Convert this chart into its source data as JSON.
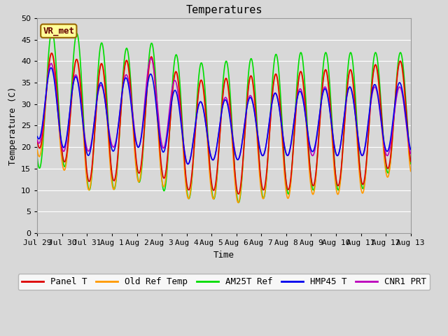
{
  "title": "Temperatures",
  "xlabel": "Time",
  "ylabel": "Temperature (C)",
  "ylim": [
    0,
    50
  ],
  "yticks": [
    0,
    5,
    10,
    15,
    20,
    25,
    30,
    35,
    40,
    45,
    50
  ],
  "xtick_labels": [
    "Jul 29",
    "Jul 30",
    "Jul 31",
    "Aug 1",
    "Aug 2",
    "Aug 3",
    "Aug 4",
    "Aug 5",
    "Aug 6",
    "Aug 7",
    "Aug 8",
    "Aug 9",
    "Aug 10",
    "Aug 11",
    "Aug 12",
    "Aug 13"
  ],
  "series": {
    "Panel T": {
      "color": "#dd0000",
      "lw": 1.2
    },
    "Old Ref Temp": {
      "color": "#ff9900",
      "lw": 1.2
    },
    "AM25T Ref": {
      "color": "#00dd00",
      "lw": 1.2
    },
    "HMP45 T": {
      "color": "#0000ee",
      "lw": 1.2
    },
    "CNR1 PRT": {
      "color": "#bb00bb",
      "lw": 1.2
    }
  },
  "fig_bg_color": "#d8d8d8",
  "plot_bg_color": "#d8d8d8",
  "grid_color": "#ffffff",
  "annotation_text": "VR_met",
  "annotation_box_facecolor": "#ffff99",
  "annotation_box_edgecolor": "#996600",
  "title_fontsize": 11,
  "axis_label_fontsize": 9,
  "tick_fontsize": 8,
  "legend_fontsize": 9
}
